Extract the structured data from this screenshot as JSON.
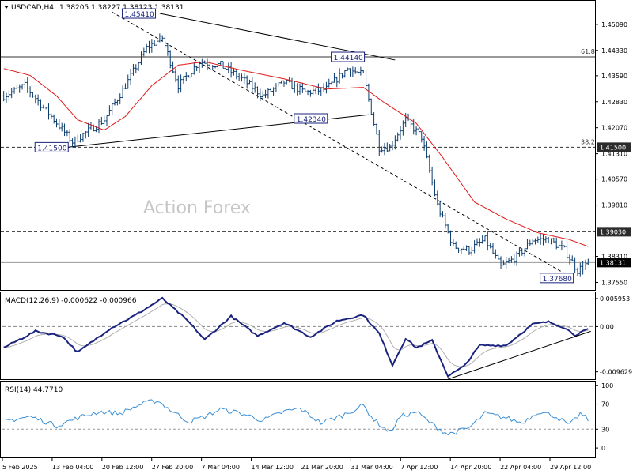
{
  "header": {
    "symbol": "USDCAD,H4",
    "ohlc": "1.38205 1.38227 1.38123 1.38131"
  },
  "watermark": "Action Forex",
  "macd_label": "MACD(12,26,9) -0.000622 -0.000966",
  "rsi_label": "RSI(14) 44.7710",
  "chart_data": [
    {
      "type": "candlestick",
      "symbol": "USDCAD",
      "timeframe": "H4",
      "last_price": "1.38131",
      "y_ticks": [
        "1.45090",
        "1.44330",
        "1.43590",
        "1.42830",
        "1.42070",
        "1.41310",
        "1.40570",
        "1.39810",
        "1.38310",
        "1.37550"
      ],
      "ylim": [
        1.3733,
        1.4578
      ],
      "x_ticks": [
        "5 Feb 2025",
        "13 Feb 04:00",
        "20 Feb 12:00",
        "27 Feb 20:00",
        "7 Mar 04:00",
        "14 Mar 12:00",
        "21 Mar 20:00",
        "31 Mar 04:00",
        "7 Apr 12:00",
        "14 Apr 20:00",
        "22 Apr 04:00",
        "29 Apr 12:00"
      ],
      "price_anchors": [
        {
          "bar": 0,
          "price": 1.43
        },
        {
          "bar": 8,
          "price": 1.433
        },
        {
          "bar": 18,
          "price": 1.424
        },
        {
          "bar": 26,
          "price": 1.4166
        },
        {
          "bar": 38,
          "price": 1.423
        },
        {
          "bar": 46,
          "price": 1.433
        },
        {
          "bar": 54,
          "price": 1.444
        },
        {
          "bar": 60,
          "price": 1.447
        },
        {
          "bar": 66,
          "price": 1.433
        },
        {
          "bar": 74,
          "price": 1.44
        },
        {
          "bar": 82,
          "price": 1.439
        },
        {
          "bar": 90,
          "price": 1.435
        },
        {
          "bar": 98,
          "price": 1.43
        },
        {
          "bar": 106,
          "price": 1.434
        },
        {
          "bar": 114,
          "price": 1.431
        },
        {
          "bar": 122,
          "price": 1.432
        },
        {
          "bar": 130,
          "price": 1.438
        },
        {
          "bar": 136,
          "price": 1.436
        },
        {
          "bar": 142,
          "price": 1.415
        },
        {
          "bar": 146,
          "price": 1.415
        },
        {
          "bar": 152,
          "price": 1.423
        },
        {
          "bar": 158,
          "price": 1.418
        },
        {
          "bar": 164,
          "price": 1.398
        },
        {
          "bar": 170,
          "price": 1.386
        },
        {
          "bar": 176,
          "price": 1.385
        },
        {
          "bar": 182,
          "price": 1.388
        },
        {
          "bar": 188,
          "price": 1.38
        },
        {
          "bar": 194,
          "price": 1.383
        },
        {
          "bar": 200,
          "price": 1.388
        },
        {
          "bar": 206,
          "price": 1.388
        },
        {
          "bar": 212,
          "price": 1.385
        },
        {
          "bar": 217,
          "price": 1.379
        },
        {
          "bar": 221,
          "price": 1.3813
        }
      ],
      "moving_average": [
        {
          "bar": 0,
          "price": 1.438
        },
        {
          "bar": 10,
          "price": 1.436
        },
        {
          "bar": 20,
          "price": 1.43
        },
        {
          "bar": 28,
          "price": 1.423
        },
        {
          "bar": 38,
          "price": 1.42
        },
        {
          "bar": 46,
          "price": 1.424
        },
        {
          "bar": 56,
          "price": 1.433
        },
        {
          "bar": 66,
          "price": 1.439
        },
        {
          "bar": 76,
          "price": 1.44
        },
        {
          "bar": 90,
          "price": 1.4375
        },
        {
          "bar": 106,
          "price": 1.435
        },
        {
          "bar": 122,
          "price": 1.432
        },
        {
          "bar": 136,
          "price": 1.4325
        },
        {
          "bar": 144,
          "price": 1.428
        },
        {
          "bar": 156,
          "price": 1.422
        },
        {
          "bar": 166,
          "price": 1.412
        },
        {
          "bar": 178,
          "price": 1.399
        },
        {
          "bar": 190,
          "price": 1.394
        },
        {
          "bar": 202,
          "price": 1.39
        },
        {
          "bar": 214,
          "price": 1.388
        },
        {
          "bar": 221,
          "price": 1.386
        }
      ],
      "price_labels": [
        {
          "text": "1.45410",
          "bar": 58,
          "price": 1.4541,
          "side": "left"
        },
        {
          "text": "1.44140",
          "bar": 137,
          "price": 1.4414,
          "side": "left"
        },
        {
          "text": "1.42340",
          "bar": 123,
          "price": 1.4234,
          "side": "left"
        },
        {
          "text": "1.41500",
          "bar": 25,
          "price": 1.415,
          "side": "left"
        },
        {
          "text": "1.37680",
          "bar": 216,
          "price": 1.3768,
          "side": "left"
        }
      ],
      "horizontal_levels": [
        {
          "price": 1.4414,
          "style": "solid",
          "fib_label": "61.8"
        },
        {
          "price": 1.415,
          "style": "dashed",
          "fib_label": "38.2",
          "axis_tag": "1.41500"
        },
        {
          "price": 1.3903,
          "style": "dashed",
          "axis_tag": "1.39030"
        },
        {
          "price": 1.3813,
          "style": "current",
          "axis_tag": "1.38131"
        }
      ],
      "trendlines": [
        {
          "from": {
            "bar": 59,
            "price": 1.4541
          },
          "to": {
            "bar": 148,
            "price": 1.4405
          },
          "style": "solid"
        },
        {
          "from": {
            "bar": 24,
            "price": 1.415
          },
          "to": {
            "bar": 138,
            "price": 1.4245
          },
          "style": "solid"
        },
        {
          "from": {
            "bar": 41,
            "price": 1.4545
          },
          "to": {
            "bar": 215,
            "price": 1.3768
          },
          "style": "dashed"
        }
      ]
    },
    {
      "type": "line",
      "name": "MACD(12,26,9)",
      "values": [
        "-0.000622",
        "-0.000966"
      ],
      "y_ticks": [
        "0.005953",
        "0.00",
        "-0.009629"
      ],
      "ylim": [
        -0.0112,
        0.0073
      ],
      "macd_anchors": [
        {
          "bar": 0,
          "v": -0.0045
        },
        {
          "bar": 12,
          "v": -0.001
        },
        {
          "bar": 22,
          "v": -0.002
        },
        {
          "bar": 28,
          "v": -0.0055
        },
        {
          "bar": 40,
          "v": -0.0005
        },
        {
          "bar": 50,
          "v": 0.0025
        },
        {
          "bar": 60,
          "v": 0.006
        },
        {
          "bar": 70,
          "v": 0.001
        },
        {
          "bar": 76,
          "v": -0.0028
        },
        {
          "bar": 86,
          "v": 0.0022
        },
        {
          "bar": 96,
          "v": -0.002
        },
        {
          "bar": 106,
          "v": 0.0008
        },
        {
          "bar": 116,
          "v": -0.0022
        },
        {
          "bar": 126,
          "v": 0.0012
        },
        {
          "bar": 136,
          "v": 0.0025
        },
        {
          "bar": 142,
          "v": -0.0015
        },
        {
          "bar": 147,
          "v": -0.0082
        },
        {
          "bar": 152,
          "v": -0.0025
        },
        {
          "bar": 156,
          "v": -0.0045
        },
        {
          "bar": 162,
          "v": -0.003
        },
        {
          "bar": 168,
          "v": -0.0105
        },
        {
          "bar": 174,
          "v": -0.0085
        },
        {
          "bar": 180,
          "v": -0.004
        },
        {
          "bar": 190,
          "v": -0.004
        },
        {
          "bar": 200,
          "v": 0.0005
        },
        {
          "bar": 206,
          "v": 0.001
        },
        {
          "bar": 212,
          "v": -0.0002
        },
        {
          "bar": 216,
          "v": -0.0018
        },
        {
          "bar": 221,
          "v": -0.0006
        }
      ],
      "trendline": {
        "from": {
          "bar": 168,
          "v": -0.0112
        },
        "to": {
          "bar": 222,
          "v": -0.001
        }
      }
    },
    {
      "type": "line",
      "name": "RSI(14)",
      "values": [
        "44.7710"
      ],
      "y_ticks": [
        "100",
        "70",
        "30",
        "0"
      ],
      "ylim": [
        -15,
        106
      ],
      "rsi_anchors": [
        {
          "bar": 0,
          "v": 43
        },
        {
          "bar": 10,
          "v": 50
        },
        {
          "bar": 20,
          "v": 36
        },
        {
          "bar": 28,
          "v": 48
        },
        {
          "bar": 36,
          "v": 58
        },
        {
          "bar": 44,
          "v": 55
        },
        {
          "bar": 52,
          "v": 70
        },
        {
          "bar": 58,
          "v": 76
        },
        {
          "bar": 64,
          "v": 58
        },
        {
          "bar": 70,
          "v": 42
        },
        {
          "bar": 76,
          "v": 50
        },
        {
          "bar": 82,
          "v": 62
        },
        {
          "bar": 90,
          "v": 55
        },
        {
          "bar": 98,
          "v": 44
        },
        {
          "bar": 106,
          "v": 58
        },
        {
          "bar": 112,
          "v": 63
        },
        {
          "bar": 120,
          "v": 40
        },
        {
          "bar": 128,
          "v": 52
        },
        {
          "bar": 136,
          "v": 68
        },
        {
          "bar": 140,
          "v": 45
        },
        {
          "bar": 146,
          "v": 25
        },
        {
          "bar": 150,
          "v": 50
        },
        {
          "bar": 156,
          "v": 58
        },
        {
          "bar": 162,
          "v": 38
        },
        {
          "bar": 168,
          "v": 22
        },
        {
          "bar": 176,
          "v": 32
        },
        {
          "bar": 182,
          "v": 55
        },
        {
          "bar": 190,
          "v": 48
        },
        {
          "bar": 196,
          "v": 40
        },
        {
          "bar": 202,
          "v": 58
        },
        {
          "bar": 208,
          "v": 52
        },
        {
          "bar": 214,
          "v": 36
        },
        {
          "bar": 218,
          "v": 55
        },
        {
          "bar": 221,
          "v": 45
        }
      ]
    }
  ],
  "colors": {
    "candle": "#0b3c6e",
    "moving_average": "#e01818",
    "macd_line": "#1a237e",
    "signal_line": "#b0b0b0",
    "rsi_line": "#3a8fd6",
    "label_border": "#1a237e",
    "axis_tag_bg": "#2b2b2b",
    "current_tag_bg": "#000000",
    "watermark": "#c6c6c6"
  }
}
